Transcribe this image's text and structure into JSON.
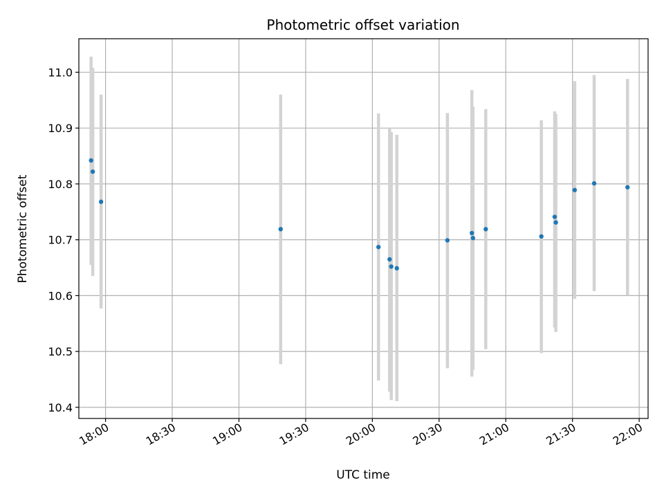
{
  "chart_data": {
    "type": "scatter",
    "title": "Photometric offset variation",
    "xlabel": "UTC time",
    "ylabel": "Photometric offset",
    "x_ticks": [
      "18:00",
      "18:30",
      "19:00",
      "19:30",
      "20:00",
      "20:30",
      "21:00",
      "21:30",
      "22:00"
    ],
    "y_ticks": [
      "10.4",
      "10.5",
      "10.6",
      "10.7",
      "10.8",
      "10.9",
      "11.0"
    ],
    "xlim": [
      "17:48",
      "22:04"
    ],
    "ylim": [
      10.38,
      11.06
    ],
    "grid": true,
    "colors": {
      "point": "#1f77b4",
      "errorbar": "#d3d3d3",
      "grid": "#b0b0b0"
    },
    "series": [
      {
        "points": [
          {
            "t": "17:53:30",
            "y": 10.842,
            "ymin": 10.655,
            "ymax": 11.028
          },
          {
            "t": "17:54:15",
            "y": 10.822,
            "ymin": 10.635,
            "ymax": 11.008
          },
          {
            "t": "17:58:00",
            "y": 10.768,
            "ymin": 10.577,
            "ymax": 10.96
          },
          {
            "t": "19:18:45",
            "y": 10.719,
            "ymin": 10.477,
            "ymax": 10.96
          },
          {
            "t": "20:02:45",
            "y": 10.687,
            "ymin": 10.448,
            "ymax": 10.926
          },
          {
            "t": "20:07:45",
            "y": 10.665,
            "ymin": 10.428,
            "ymax": 10.9
          },
          {
            "t": "20:08:30",
            "y": 10.652,
            "ymin": 10.413,
            "ymax": 10.893
          },
          {
            "t": "20:11:00",
            "y": 10.649,
            "ymin": 10.411,
            "ymax": 10.888
          },
          {
            "t": "20:33:45",
            "y": 10.699,
            "ymin": 10.47,
            "ymax": 10.927
          },
          {
            "t": "20:44:45",
            "y": 10.712,
            "ymin": 10.455,
            "ymax": 10.968
          },
          {
            "t": "20:45:15",
            "y": 10.703,
            "ymin": 10.467,
            "ymax": 10.938
          },
          {
            "t": "20:51:00",
            "y": 10.719,
            "ymin": 10.504,
            "ymax": 10.934
          },
          {
            "t": "21:16:00",
            "y": 10.706,
            "ymin": 10.497,
            "ymax": 10.914
          },
          {
            "t": "21:22:00",
            "y": 10.741,
            "ymin": 10.543,
            "ymax": 10.93
          },
          {
            "t": "21:22:30",
            "y": 10.731,
            "ymin": 10.535,
            "ymax": 10.925
          },
          {
            "t": "21:31:00",
            "y": 10.789,
            "ymin": 10.594,
            "ymax": 10.984
          },
          {
            "t": "21:39:45",
            "y": 10.801,
            "ymin": 10.608,
            "ymax": 10.995
          },
          {
            "t": "21:54:45",
            "y": 10.794,
            "ymin": 10.6,
            "ymax": 10.988
          }
        ]
      }
    ]
  }
}
